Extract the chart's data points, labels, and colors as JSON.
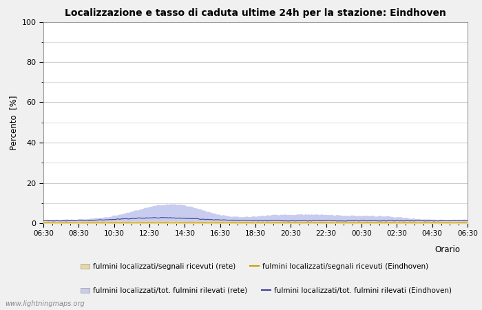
{
  "title": "Localizzazione e tasso di caduta ultime 24h per la stazione: Eindhoven",
  "ylabel": "Percento  [%]",
  "xlabel_orario": "Orario",
  "ylim": [
    0,
    100
  ],
  "yticks": [
    0,
    20,
    40,
    60,
    80,
    100
  ],
  "yticks_minor": [
    10,
    30,
    50,
    70,
    90
  ],
  "x_labels": [
    "06:30",
    "08:30",
    "10:30",
    "12:30",
    "14:30",
    "16:30",
    "18:30",
    "20:30",
    "22:30",
    "00:30",
    "02:30",
    "04:30",
    "06:30"
  ],
  "background_color": "#f0f0f0",
  "plot_bg_color": "#ffffff",
  "grid_color": "#cccccc",
  "fill_rete_color": "#e8d8a0",
  "fill_eindhoven_color": "#c8ccee",
  "line_rete_color": "#c8a000",
  "line_eindhoven_color": "#4040a0",
  "watermark": "www.lightningmaps.org",
  "legend_labels": [
    "fulmini localizzati/segnali ricevuti (rete)",
    "fulmini localizzati/segnali ricevuti (Eindhoven)",
    "fulmini localizzati/tot. fulmini rilevati (rete)",
    "fulmini localizzati/tot. fulmini rilevati (Eindhoven)"
  ]
}
